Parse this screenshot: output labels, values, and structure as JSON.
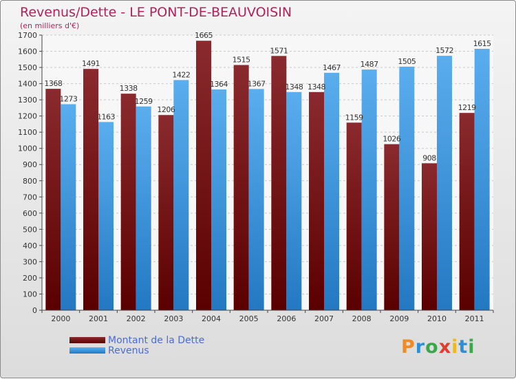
{
  "title": "Revenus/Dette - LE PONT-DE-BEAUVOISIN",
  "subtitle": "(en milliers d'€)",
  "brand": {
    "letters": [
      "P",
      "r",
      "o",
      "x",
      "i",
      "t",
      "i"
    ],
    "colors": [
      "#f08a24",
      "#2e8fd8",
      "#3aa84a",
      "#e23c2a",
      "#f0b81c",
      "#2e8fd8",
      "#3aa84a"
    ]
  },
  "colors": {
    "dette": "#7a1c20",
    "revenus": "#2f8edb",
    "title": "#b0235a",
    "legend_text": "#4a6cd4"
  },
  "chart_data": {
    "type": "bar",
    "categories": [
      "2000",
      "2001",
      "2002",
      "2003",
      "2004",
      "2005",
      "2006",
      "2007",
      "2008",
      "2009",
      "2010",
      "2011"
    ],
    "series": [
      {
        "name": "Montant de la Dette",
        "values": [
          1368,
          1491,
          1338,
          1206,
          1665,
          1515,
          1571,
          1348,
          1159,
          1026,
          908,
          1219
        ]
      },
      {
        "name": "Revenus",
        "values": [
          1273,
          1163,
          1259,
          1422,
          1364,
          1367,
          1348,
          1467,
          1487,
          1505,
          1572,
          1615
        ]
      }
    ],
    "yticks": [
      0,
      100,
      200,
      300,
      400,
      500,
      600,
      700,
      800,
      900,
      1000,
      1100,
      1200,
      1300,
      1400,
      1500,
      1600,
      1700
    ],
    "ylim": [
      0,
      1700
    ],
    "grid": true,
    "legend_position": "bottom-left"
  }
}
